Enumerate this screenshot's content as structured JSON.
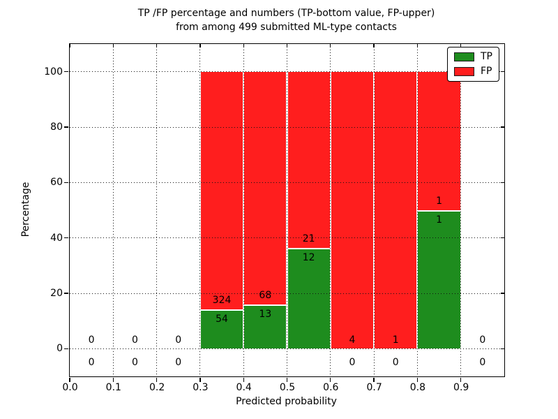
{
  "chart_data": {
    "type": "bar",
    "stacked": true,
    "title_line1": "TP /FP percentage and numbers (TP-bottom value, FP-upper)",
    "title_line2": "from among 499 submitted ML-type contacts",
    "xlabel": "Predicted probability",
    "ylabel": "Percentage",
    "xlim": [
      0.0,
      1.0
    ],
    "ylim": [
      -10,
      110
    ],
    "xticks": [
      "0.0",
      "0.1",
      "0.2",
      "0.3",
      "0.4",
      "0.5",
      "0.6",
      "0.7",
      "0.8",
      "0.9"
    ],
    "yticks": [
      "0",
      "20",
      "40",
      "60",
      "80",
      "100"
    ],
    "grid": "dotted-both-axes-above-bars",
    "legend_position": "upper-right",
    "legend": [
      {
        "label": "TP",
        "color": "#1e8c1e"
      },
      {
        "label": "FP",
        "color": "#ff1e1e"
      }
    ],
    "total_contacts_in_title": 499,
    "bins": [
      {
        "x0": 0.0,
        "x1": 0.1,
        "tp": 0,
        "fp": 0
      },
      {
        "x0": 0.1,
        "x1": 0.2,
        "tp": 0,
        "fp": 0
      },
      {
        "x0": 0.2,
        "x1": 0.3,
        "tp": 0,
        "fp": 0
      },
      {
        "x0": 0.3,
        "x1": 0.4,
        "tp": 54,
        "fp": 324
      },
      {
        "x0": 0.4,
        "x1": 0.5,
        "tp": 13,
        "fp": 68
      },
      {
        "x0": 0.5,
        "x1": 0.6,
        "tp": 12,
        "fp": 21
      },
      {
        "x0": 0.6,
        "x1": 0.7,
        "tp": 0,
        "fp": 4
      },
      {
        "x0": 0.7,
        "x1": 0.8,
        "tp": 0,
        "fp": 1
      },
      {
        "x0": 0.8,
        "x1": 0.9,
        "tp": 1,
        "fp": 1
      },
      {
        "x0": 0.9,
        "x1": 1.0,
        "tp": 0,
        "fp": 0
      }
    ],
    "annotation_rule": "FP count drawn just above the TP/FP boundary, TP count just below; zero TP counts drawn below the zero line"
  }
}
